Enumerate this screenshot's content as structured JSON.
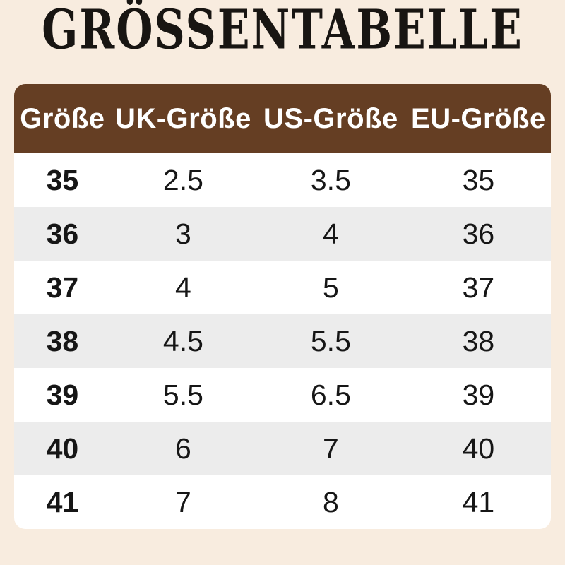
{
  "title": "GRÖSSENTABELLE",
  "colors": {
    "page_background": "#f8ecdf",
    "header_background": "#653e23",
    "header_text": "#ffffff",
    "row_background": "#ffffff",
    "row_alt_background": "#ececec",
    "body_text": "#161616",
    "title_text": "#181512"
  },
  "table": {
    "columns": [
      "Größe",
      "UK-Größe",
      "US-Größe",
      "EU-Größe"
    ],
    "rows": [
      [
        "35",
        "2.5",
        "3.5",
        "35"
      ],
      [
        "36",
        "3",
        "4",
        "36"
      ],
      [
        "37",
        "4",
        "5",
        "37"
      ],
      [
        "38",
        "4.5",
        "5.5",
        "38"
      ],
      [
        "39",
        "5.5",
        "6.5",
        "39"
      ],
      [
        "40",
        "6",
        "7",
        "40"
      ],
      [
        "41",
        "7",
        "8",
        "41"
      ]
    ]
  }
}
